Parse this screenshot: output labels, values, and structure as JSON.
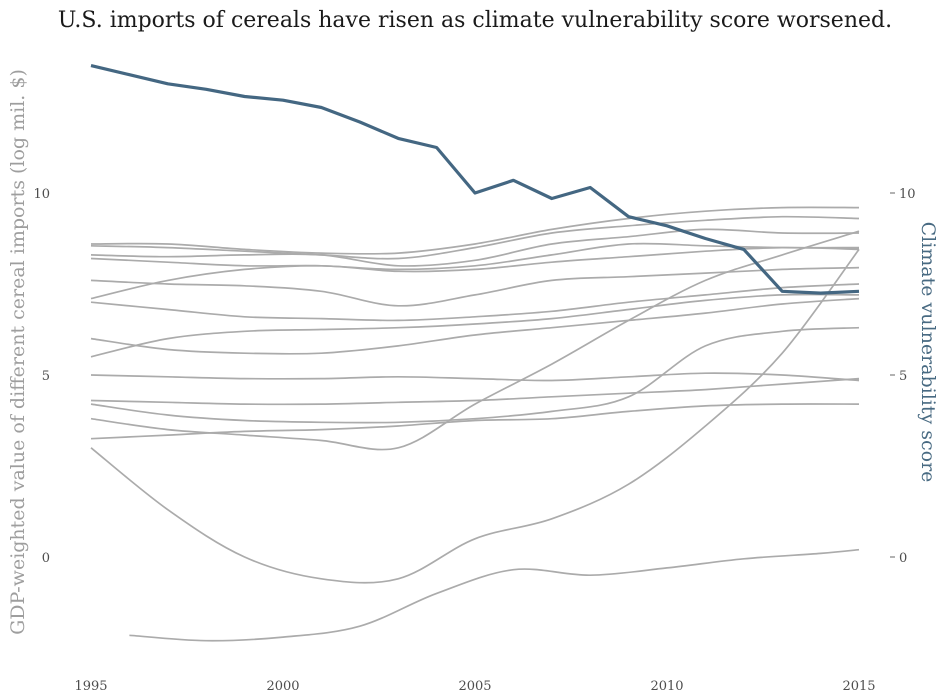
{
  "chart_data": {
    "type": "line",
    "title": "U.S. imports of cereals have risen as climate vulnerability score worsened.",
    "ylabel_left": "GDP-weighted value of different cereal imports (log mil. $)",
    "ylabel_right": "Climate vulnerability score",
    "xlim": [
      1995,
      2015
    ],
    "ylim": [
      -3,
      13.5
    ],
    "x_ticks": [
      "1995",
      "2000",
      "2005",
      "2010",
      "2015"
    ],
    "y_ticks_left": [
      "10",
      "5",
      "0"
    ],
    "y_ticks_right": [
      "10",
      "5",
      "0"
    ],
    "grid": false,
    "legend": "none",
    "colors": {
      "cereal_series": "#ababab",
      "vulnerability": "#446782"
    },
    "vulnerability_series": {
      "x": [
        1995,
        1996,
        1997,
        1998,
        1999,
        2000,
        2001,
        2002,
        2003,
        2004,
        2005,
        2006,
        2007,
        2008,
        2009,
        2010,
        2011,
        2012,
        2013,
        2014,
        2015
      ],
      "values": [
        13.5,
        13.25,
        13.0,
        12.85,
        12.65,
        12.55,
        12.35,
        11.95,
        11.5,
        11.25,
        10.0,
        10.35,
        9.85,
        10.15,
        9.35,
        9.1,
        8.75,
        8.45,
        7.3,
        7.25,
        7.3
      ]
    },
    "cereal_series": [
      {
        "x": [
          1995,
          1997,
          1999,
          2001,
          2003,
          2005,
          2007,
          2009,
          2011,
          2013,
          2015
        ],
        "values": [
          8.6,
          8.6,
          8.45,
          8.35,
          8.35,
          8.6,
          9.0,
          9.3,
          9.5,
          9.6,
          9.6
        ]
      },
      {
        "x": [
          1995,
          1997,
          1999,
          2001,
          2003,
          2005,
          2007,
          2009,
          2011,
          2013,
          2015
        ],
        "values": [
          8.55,
          8.5,
          8.4,
          8.3,
          8.2,
          8.5,
          8.9,
          9.1,
          9.25,
          9.35,
          9.3
        ]
      },
      {
        "x": [
          1995,
          1997,
          1999,
          2001,
          2003,
          2005,
          2007,
          2009,
          2011,
          2013,
          2015
        ],
        "values": [
          8.3,
          8.25,
          8.3,
          8.3,
          8.0,
          8.15,
          8.6,
          8.8,
          9.0,
          8.9,
          8.9
        ]
      },
      {
        "x": [
          1995,
          1997,
          1999,
          2001,
          2003,
          2005,
          2007,
          2009,
          2011,
          2013,
          2015
        ],
        "values": [
          8.2,
          8.1,
          8.0,
          8.0,
          7.9,
          8.0,
          8.3,
          8.6,
          8.55,
          8.5,
          8.5
        ]
      },
      {
        "x": [
          1995,
          1997,
          1999,
          2001,
          2003,
          2005,
          2007,
          2009,
          2011,
          2013,
          2015
        ],
        "values": [
          7.1,
          7.6,
          7.9,
          8.0,
          7.85,
          7.9,
          8.1,
          8.25,
          8.4,
          8.5,
          8.45
        ]
      },
      {
        "x": [
          1995,
          1997,
          1999,
          2001,
          2003,
          2005,
          2007,
          2009,
          2011,
          2013,
          2015
        ],
        "values": [
          7.6,
          7.5,
          7.45,
          7.3,
          6.9,
          7.2,
          7.6,
          7.7,
          7.8,
          7.9,
          7.95
        ]
      },
      {
        "x": [
          1995,
          1997,
          1999,
          2001,
          2003,
          2005,
          2007,
          2009,
          2011,
          2013,
          2015
        ],
        "values": [
          7.0,
          6.8,
          6.6,
          6.55,
          6.5,
          6.6,
          6.75,
          7.0,
          7.2,
          7.4,
          7.5
        ]
      },
      {
        "x": [
          1995,
          1997,
          1999,
          2001,
          2003,
          2005,
          2007,
          2009,
          2011,
          2013,
          2015
        ],
        "values": [
          5.5,
          6.0,
          6.2,
          6.25,
          6.3,
          6.4,
          6.55,
          6.8,
          7.05,
          7.2,
          7.2
        ]
      },
      {
        "x": [
          1995,
          1997,
          1999,
          2001,
          2003,
          2005,
          2007,
          2009,
          2011,
          2013,
          2015
        ],
        "values": [
          6.0,
          5.7,
          5.6,
          5.6,
          5.8,
          6.1,
          6.3,
          6.5,
          6.7,
          6.95,
          7.1
        ]
      },
      {
        "x": [
          1995,
          1997,
          1999,
          2001,
          2003,
          2005,
          2007,
          2009,
          2011,
          2013,
          2015
        ],
        "values": [
          5.0,
          4.95,
          4.9,
          4.9,
          4.95,
          4.9,
          4.85,
          4.95,
          5.05,
          5.0,
          4.85
        ]
      },
      {
        "x": [
          1995,
          1997,
          1999,
          2001,
          2003,
          2005,
          2007,
          2009,
          2011,
          2013,
          2015
        ],
        "values": [
          4.3,
          4.25,
          4.2,
          4.2,
          4.25,
          4.3,
          4.4,
          4.5,
          4.6,
          4.75,
          4.9
        ]
      },
      {
        "x": [
          1995,
          1997,
          1999,
          2001,
          2003,
          2005,
          2007,
          2009,
          2011,
          2013,
          2015
        ],
        "values": [
          4.2,
          3.9,
          3.75,
          3.7,
          3.7,
          3.8,
          4.0,
          4.4,
          5.8,
          6.2,
          6.3
        ]
      },
      {
        "x": [
          1995,
          1997,
          1999,
          2001,
          2003,
          2005,
          2007,
          2009,
          2011,
          2013,
          2015
        ],
        "values": [
          3.8,
          3.5,
          3.35,
          3.2,
          3.0,
          4.2,
          5.3,
          6.5,
          7.6,
          8.3,
          8.95
        ]
      },
      {
        "x": [
          1995,
          1997,
          1999,
          2001,
          2003,
          2005,
          2007,
          2009,
          2011,
          2013,
          2015
        ],
        "values": [
          3.25,
          3.35,
          3.45,
          3.5,
          3.6,
          3.75,
          3.8,
          4.0,
          4.15,
          4.2,
          4.2
        ]
      },
      {
        "x": [
          1995,
          1997,
          1999,
          2001,
          2003,
          2005,
          2007,
          2009,
          2011,
          2013,
          2015
        ],
        "values": [
          3.0,
          1.3,
          0.0,
          -0.6,
          -0.6,
          0.5,
          1.05,
          2.0,
          3.6,
          5.6,
          8.45
        ]
      },
      {
        "x": [
          1996,
          1998,
          2000,
          2002,
          2004,
          2006,
          2008,
          2010,
          2012,
          2014,
          2015
        ],
        "values": [
          -2.15,
          -2.3,
          -2.2,
          -1.9,
          -1.0,
          -0.35,
          -0.5,
          -0.3,
          -0.05,
          0.1,
          0.2
        ]
      }
    ]
  }
}
